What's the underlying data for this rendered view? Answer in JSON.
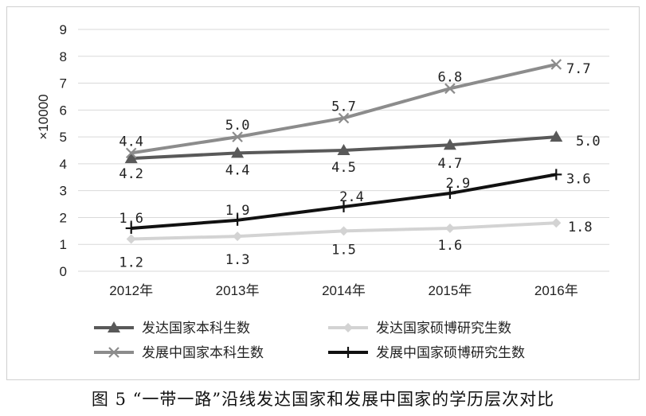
{
  "caption": "图 5 “一带一路”沿线发达国家和发展中国家的学历层次对比",
  "chart_data": {
    "type": "line",
    "ylabel": "×10000",
    "ylim": [
      0,
      9
    ],
    "yticks": [
      0,
      1,
      2,
      3,
      4,
      5,
      6,
      7,
      8,
      9
    ],
    "categories": [
      "2012年",
      "2013年",
      "2014年",
      "2015年",
      "2016年"
    ],
    "grid": true,
    "legend_position": "bottom",
    "series": [
      {
        "name": "发达国家本科生数",
        "values": [
          4.2,
          4.4,
          4.5,
          4.7,
          5.0
        ],
        "labels": [
          "4.2",
          "4.4",
          "4.5",
          "4.7",
          "5.0"
        ],
        "color": "#595959",
        "marker": "triangle"
      },
      {
        "name": "发展中国家本科生数",
        "values": [
          4.4,
          5.0,
          5.7,
          6.8,
          7.7
        ],
        "labels": [
          "4.4",
          "5.0",
          "5.7",
          "6.8",
          "7.7"
        ],
        "color": "#8c8c8c",
        "marker": "x"
      },
      {
        "name": "发达国家硕博研究生数",
        "values": [
          1.2,
          1.3,
          1.5,
          1.6,
          1.8
        ],
        "labels": [
          "1.2",
          "1.3",
          "1.5",
          "1.6",
          "1.8"
        ],
        "color": "#d3d3d3",
        "marker": "diamond"
      },
      {
        "name": "发展中国家硕博研究生数",
        "values": [
          1.6,
          1.9,
          2.4,
          2.9,
          3.6
        ],
        "labels": [
          "1.6",
          "1.9",
          "2.4",
          "2.9",
          "3.6"
        ],
        "color": "#111111",
        "marker": "plus"
      }
    ]
  }
}
